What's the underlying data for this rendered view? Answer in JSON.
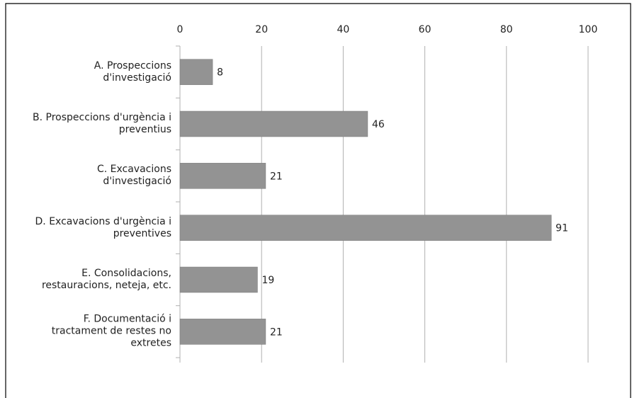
{
  "chart_data": {
    "type": "bar",
    "orientation": "horizontal",
    "categories": [
      "A. Prospeccions d'investigació",
      "B. Prospeccions d'urgència i preventius",
      "C. Excavacions d'investigació",
      "D. Excavacions d'urgència i preventives",
      "E. Consolidacions, restauracions, neteja, etc.",
      "F. Documentació i tractament de restes no extretes"
    ],
    "values": [
      8,
      46,
      21,
      91,
      19,
      21
    ],
    "color": "#939393",
    "xlim": [
      0,
      100
    ],
    "xticks": [
      0,
      20,
      40,
      60,
      80,
      100
    ],
    "grid": true
  }
}
